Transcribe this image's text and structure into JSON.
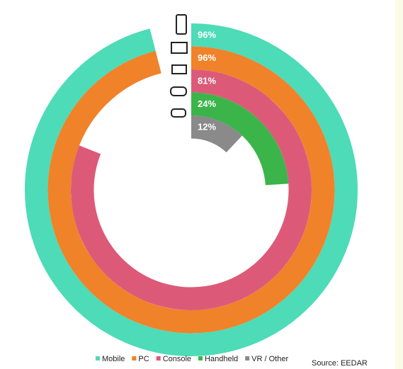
{
  "chart_data": {
    "type": "radial-bar",
    "categories": [
      "Mobile",
      "PC",
      "Console",
      "Handheld",
      "VR / Other"
    ],
    "values": [
      96,
      96,
      81,
      24,
      12
    ],
    "value_labels": [
      "96%",
      "96%",
      "81%",
      "24%",
      "12%"
    ],
    "colors": [
      "#4ddbb8",
      "#f0822a",
      "#dc5a78",
      "#3bb54a",
      "#8a8a8a"
    ],
    "source": "Source: EEDAR"
  }
}
